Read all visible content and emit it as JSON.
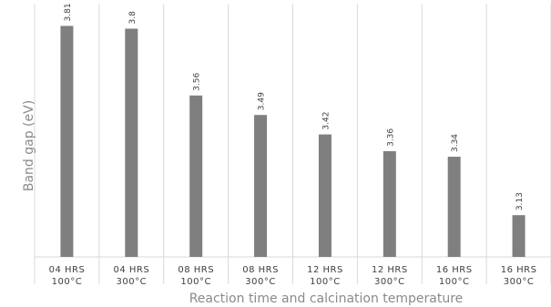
{
  "chart_data": {
    "type": "bar",
    "title": "",
    "xlabel": "Reaction time and calcination temperature",
    "ylabel": "Band gap (eV)",
    "categories": [
      [
        "04 HRS",
        "100°C"
      ],
      [
        "04 HRS",
        "300°C"
      ],
      [
        "08 HRS",
        "100°C"
      ],
      [
        "08 HRS",
        "300°C"
      ],
      [
        "12 HRS",
        "100°C"
      ],
      [
        "12 HRS",
        "300°C"
      ],
      [
        "16 HRS",
        "100°C"
      ],
      [
        "16 HRS",
        "300°C"
      ]
    ],
    "values": [
      3.81,
      3.8,
      3.56,
      3.49,
      3.42,
      3.36,
      3.34,
      3.13
    ],
    "data_labels": [
      "3.81",
      "3.8",
      "3.56",
      "3.49",
      "3.42",
      "3.36",
      "3.34",
      "3.13"
    ],
    "ylim": [
      2.98,
      3.89
    ],
    "grid": "vertical category separators",
    "legend": "none",
    "bar_color": "#7f7f7f"
  }
}
